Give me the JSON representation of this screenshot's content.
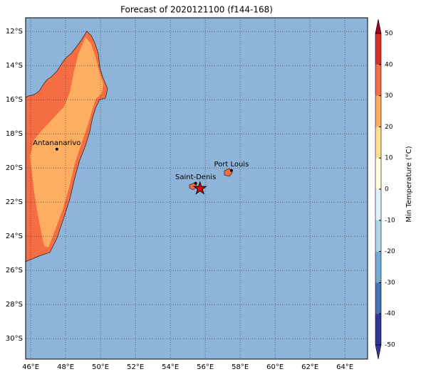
{
  "title": "Forecast of 2020121100 (f144-168)",
  "map": {
    "lonlim": [
      45.71,
      65.3
    ],
    "latlim": [
      -31.2,
      -11.2
    ],
    "lon_ticks": [
      {
        "value": 46,
        "label": "46°E"
      },
      {
        "value": 48,
        "label": "48°E"
      },
      {
        "value": 50,
        "label": "50°E"
      },
      {
        "value": 52,
        "label": "52°E"
      },
      {
        "value": 54,
        "label": "54°E"
      },
      {
        "value": 56,
        "label": "56°E"
      },
      {
        "value": 58,
        "label": "58°E"
      },
      {
        "value": 60,
        "label": "60°E"
      },
      {
        "value": 62,
        "label": "62°E"
      },
      {
        "value": 64,
        "label": "64°E"
      }
    ],
    "lat_ticks": [
      {
        "value": -12,
        "label": "12°S"
      },
      {
        "value": -14,
        "label": "14°S"
      },
      {
        "value": -16,
        "label": "16°S"
      },
      {
        "value": -18,
        "label": "18°S"
      },
      {
        "value": -20,
        "label": "20°S"
      },
      {
        "value": -22,
        "label": "22°S"
      },
      {
        "value": -24,
        "label": "24°S"
      },
      {
        "value": -26,
        "label": "26°S"
      },
      {
        "value": -28,
        "label": "28°S"
      },
      {
        "value": -30,
        "label": "30°S"
      }
    ],
    "cities": [
      {
        "name": "Antananarivo",
        "lon": 47.5,
        "lat": -18.9
      },
      {
        "name": "Saint-Denis",
        "lon": 55.45,
        "lat": -20.9
      },
      {
        "name": "Port Louis",
        "lon": 57.5,
        "lat": -20.15
      }
    ],
    "star": {
      "lon": 55.7,
      "lat": -21.2
    }
  },
  "colorbar": {
    "label": "Min Temperature (°C)",
    "ticks": [
      -50,
      -40,
      -30,
      -20,
      -10,
      0,
      10,
      20,
      30,
      40,
      50
    ],
    "colors": [
      "#313695",
      "#4575b4",
      "#74add1",
      "#abd9e9",
      "#e0f3f8",
      "#ffffe0",
      "#fee090",
      "#fdae61",
      "#f46d43",
      "#d73027",
      "#a50026"
    ]
  }
}
